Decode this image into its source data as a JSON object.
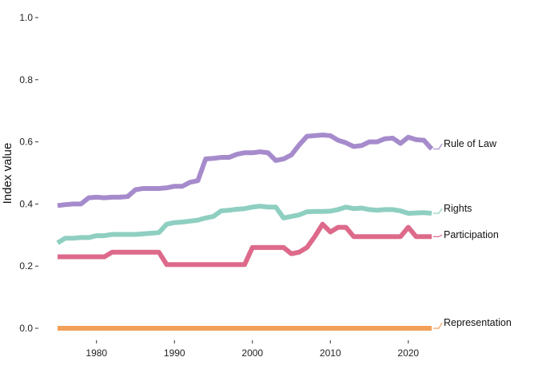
{
  "chart_data": {
    "type": "line",
    "title": "",
    "xlabel": "",
    "ylabel": "Index value",
    "xlim": [
      1975,
      2023
    ],
    "ylim": [
      0,
      1
    ],
    "yticks": [
      {
        "value": 0.0,
        "label": "0.0"
      },
      {
        "value": 0.2,
        "label": "0.2"
      },
      {
        "value": 0.4,
        "label": "0.4"
      },
      {
        "value": 0.6,
        "label": "0.6"
      },
      {
        "value": 0.8,
        "label": "0.8"
      },
      {
        "value": 1.0,
        "label": "1.0"
      }
    ],
    "xticks": [
      {
        "value": 1980,
        "label": "1980"
      },
      {
        "value": 1990,
        "label": "1990"
      },
      {
        "value": 2000,
        "label": "2000"
      },
      {
        "value": 2010,
        "label": "2010"
      },
      {
        "value": 2020,
        "label": "2020"
      }
    ],
    "grid": false,
    "legend": "direct labels at line ends (right)",
    "x": [
      1975,
      1976,
      1977,
      1978,
      1979,
      1980,
      1981,
      1982,
      1983,
      1984,
      1985,
      1986,
      1987,
      1988,
      1989,
      1990,
      1991,
      1992,
      1993,
      1994,
      1995,
      1996,
      1997,
      1998,
      1999,
      2000,
      2001,
      2002,
      2003,
      2004,
      2005,
      2006,
      2007,
      2008,
      2009,
      2010,
      2011,
      2012,
      2013,
      2014,
      2015,
      2016,
      2017,
      2018,
      2019,
      2020,
      2021,
      2022,
      2023
    ],
    "series": [
      {
        "name": "Rule of Law",
        "color": "#a68bcc",
        "values": [
          0.395,
          0.398,
          0.4,
          0.4,
          0.42,
          0.422,
          0.42,
          0.422,
          0.422,
          0.424,
          0.446,
          0.45,
          0.45,
          0.45,
          0.452,
          0.457,
          0.457,
          0.47,
          0.475,
          0.545,
          0.547,
          0.55,
          0.55,
          0.56,
          0.565,
          0.565,
          0.568,
          0.565,
          0.54,
          0.545,
          0.558,
          0.59,
          0.618,
          0.62,
          0.622,
          0.62,
          0.605,
          0.597,
          0.585,
          0.588,
          0.6,
          0.6,
          0.61,
          0.612,
          0.595,
          0.615,
          0.607,
          0.605,
          0.577
        ]
      },
      {
        "name": "Rights",
        "color": "#8ecfc1",
        "values": [
          0.275,
          0.29,
          0.29,
          0.292,
          0.292,
          0.298,
          0.298,
          0.302,
          0.302,
          0.302,
          0.302,
          0.304,
          0.306,
          0.308,
          0.335,
          0.34,
          0.342,
          0.345,
          0.348,
          0.355,
          0.36,
          0.378,
          0.38,
          0.383,
          0.385,
          0.39,
          0.393,
          0.39,
          0.39,
          0.355,
          0.36,
          0.365,
          0.375,
          0.376,
          0.376,
          0.377,
          0.382,
          0.39,
          0.385,
          0.387,
          0.382,
          0.38,
          0.382,
          0.382,
          0.378,
          0.37,
          0.371,
          0.372,
          0.37
        ]
      },
      {
        "name": "Participation",
        "color": "#dd6a8b",
        "values": [
          0.23,
          0.23,
          0.23,
          0.23,
          0.23,
          0.23,
          0.23,
          0.245,
          0.245,
          0.245,
          0.245,
          0.245,
          0.245,
          0.245,
          0.205,
          0.205,
          0.205,
          0.205,
          0.205,
          0.205,
          0.205,
          0.205,
          0.205,
          0.205,
          0.205,
          0.26,
          0.26,
          0.26,
          0.26,
          0.26,
          0.24,
          0.245,
          0.26,
          0.295,
          0.335,
          0.31,
          0.325,
          0.325,
          0.295,
          0.295,
          0.295,
          0.295,
          0.295,
          0.295,
          0.295,
          0.325,
          0.295,
          0.295,
          0.295
        ]
      },
      {
        "name": "Representation",
        "color": "#f2a05a",
        "values": [
          0,
          0,
          0,
          0,
          0,
          0,
          0,
          0,
          0,
          0,
          0,
          0,
          0,
          0,
          0,
          0,
          0,
          0,
          0,
          0,
          0,
          0,
          0,
          0,
          0,
          0,
          0,
          0,
          0,
          0,
          0,
          0,
          0,
          0,
          0,
          0,
          0,
          0,
          0,
          0,
          0,
          0,
          0,
          0,
          0,
          0,
          0,
          0,
          0
        ]
      }
    ]
  }
}
